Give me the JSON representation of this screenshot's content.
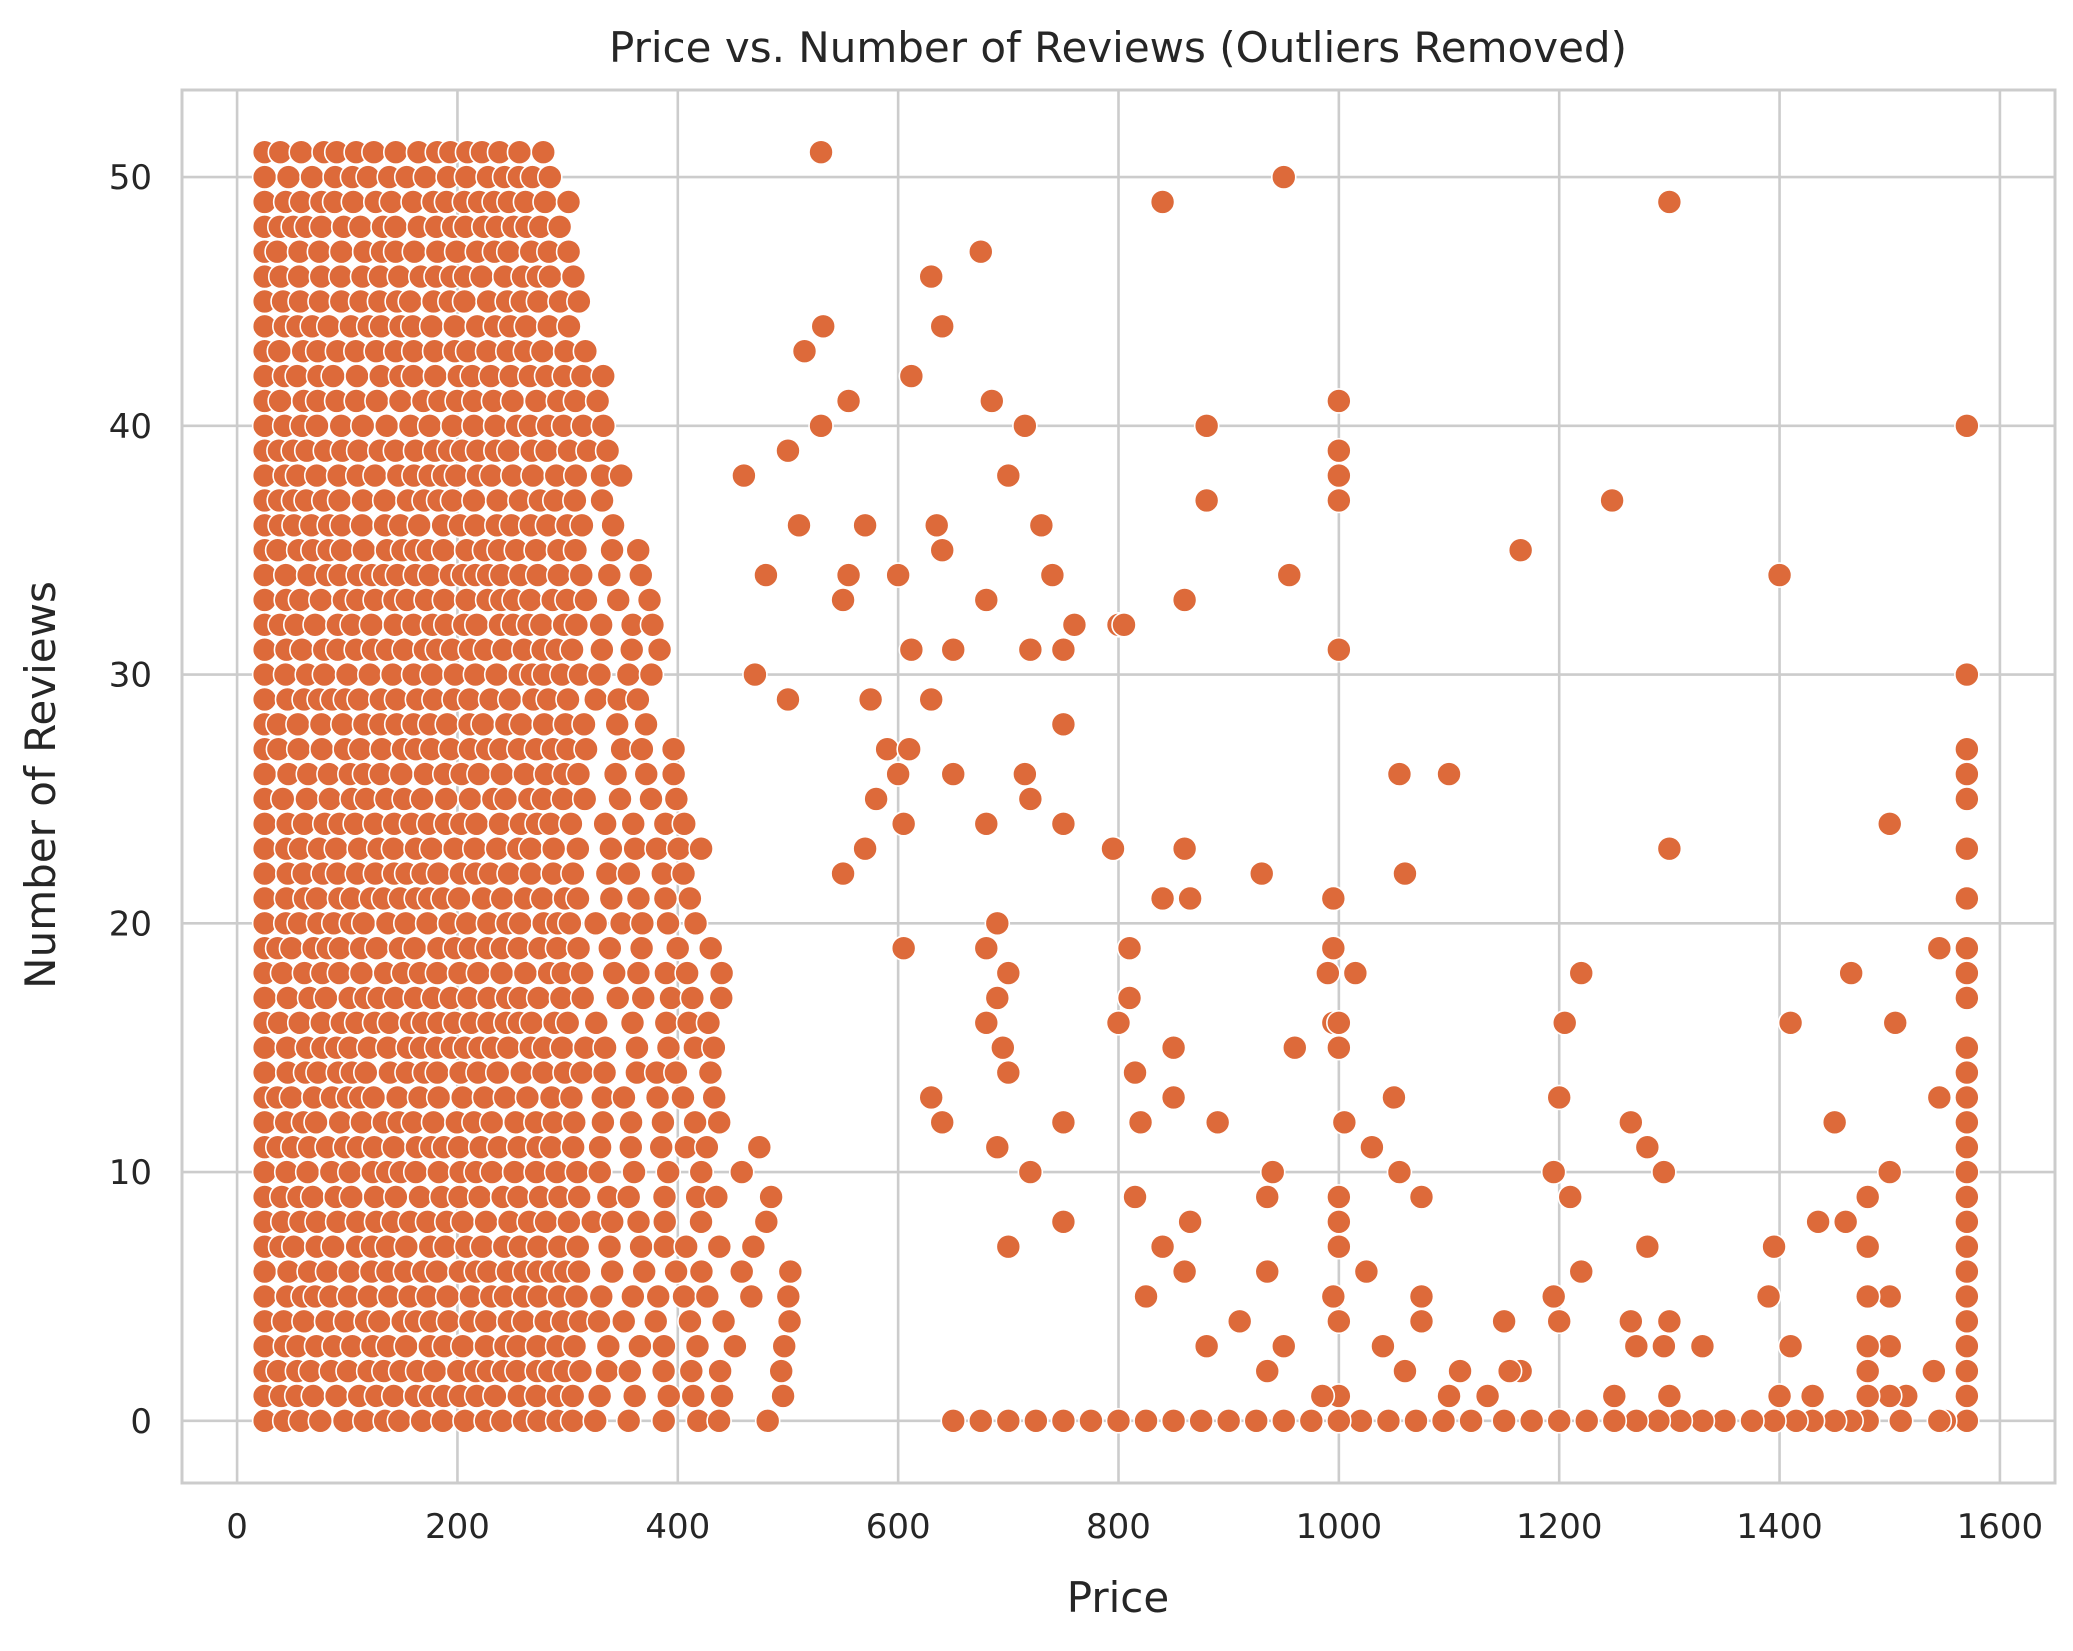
{
  "chart_data": {
    "type": "scatter",
    "title": "Price vs. Number of Reviews (Outliers Removed)",
    "xlabel": "Price",
    "ylabel": "Number of Reviews",
    "xlim": [
      -50,
      1650
    ],
    "ylim": [
      -2.5,
      53.5
    ],
    "xticks": [
      0,
      200,
      400,
      600,
      800,
      1000,
      1200,
      1400,
      1600
    ],
    "yticks": [
      0,
      10,
      20,
      30,
      40,
      50
    ],
    "grid": true,
    "color": "#dd6a3a",
    "dense_region": {
      "x_range": [
        25,
        530
      ],
      "y_range": [
        0,
        51
      ],
      "description_of_density": "near-continuous fill of integer review counts for prices up to ~530"
    },
    "points": [
      [
        530,
        51
      ],
      [
        950,
        50
      ],
      [
        1300,
        49
      ],
      [
        840,
        49
      ],
      [
        675,
        47
      ],
      [
        630,
        46
      ],
      [
        640,
        44
      ],
      [
        532,
        44
      ],
      [
        515,
        43
      ],
      [
        612,
        42
      ],
      [
        555,
        41
      ],
      [
        1000,
        41
      ],
      [
        685,
        41
      ],
      [
        1570,
        40
      ],
      [
        880,
        40
      ],
      [
        715,
        40
      ],
      [
        530,
        40
      ],
      [
        1000,
        39
      ],
      [
        500,
        39
      ],
      [
        1000,
        38
      ],
      [
        700,
        38
      ],
      [
        460,
        38
      ],
      [
        1000,
        37
      ],
      [
        880,
        37
      ],
      [
        1248,
        37
      ],
      [
        570,
        36
      ],
      [
        635,
        36
      ],
      [
        730,
        36
      ],
      [
        510,
        36
      ],
      [
        1165,
        35
      ],
      [
        640,
        35
      ],
      [
        480,
        34
      ],
      [
        955,
        34
      ],
      [
        1400,
        34
      ],
      [
        740,
        34
      ],
      [
        600,
        34
      ],
      [
        555,
        34
      ],
      [
        860,
        33
      ],
      [
        680,
        33
      ],
      [
        550,
        33
      ],
      [
        760,
        32
      ],
      [
        800,
        32
      ],
      [
        805,
        32
      ],
      [
        1000,
        31
      ],
      [
        720,
        31
      ],
      [
        750,
        31
      ],
      [
        612,
        31
      ],
      [
        650,
        31
      ],
      [
        1570,
        30
      ],
      [
        470,
        30
      ],
      [
        500,
        29
      ],
      [
        630,
        29
      ],
      [
        575,
        29
      ],
      [
        750,
        28
      ],
      [
        1570,
        27
      ],
      [
        590,
        27
      ],
      [
        610,
        27
      ],
      [
        1100,
        26
      ],
      [
        1055,
        26
      ],
      [
        1570,
        26
      ],
      [
        715,
        26
      ],
      [
        650,
        26
      ],
      [
        600,
        26
      ],
      [
        1570,
        25
      ],
      [
        720,
        25
      ],
      [
        580,
        25
      ],
      [
        750,
        24
      ],
      [
        1500,
        24
      ],
      [
        605,
        24
      ],
      [
        680,
        24
      ],
      [
        1300,
        23
      ],
      [
        1570,
        23
      ],
      [
        860,
        23
      ],
      [
        795,
        23
      ],
      [
        570,
        23
      ],
      [
        930,
        22
      ],
      [
        1060,
        22
      ],
      [
        550,
        22
      ],
      [
        1570,
        21
      ],
      [
        995,
        21
      ],
      [
        840,
        21
      ],
      [
        865,
        21
      ],
      [
        690,
        20
      ],
      [
        1545,
        19
      ],
      [
        1570,
        19
      ],
      [
        995,
        19
      ],
      [
        810,
        19
      ],
      [
        680,
        19
      ],
      [
        605,
        19
      ],
      [
        1220,
        18
      ],
      [
        1465,
        18
      ],
      [
        1015,
        18
      ],
      [
        990,
        18
      ],
      [
        1570,
        18
      ],
      [
        700,
        18
      ],
      [
        1570,
        17
      ],
      [
        810,
        17
      ],
      [
        690,
        17
      ],
      [
        1410,
        16
      ],
      [
        1505,
        16
      ],
      [
        1205,
        16
      ],
      [
        995,
        16
      ],
      [
        1000,
        16
      ],
      [
        800,
        16
      ],
      [
        680,
        16
      ],
      [
        1570,
        15
      ],
      [
        1000,
        15
      ],
      [
        960,
        15
      ],
      [
        850,
        15
      ],
      [
        695,
        15
      ],
      [
        1570,
        14
      ],
      [
        815,
        14
      ],
      [
        700,
        14
      ],
      [
        1200,
        13
      ],
      [
        1545,
        13
      ],
      [
        1050,
        13
      ],
      [
        850,
        13
      ],
      [
        630,
        13
      ],
      [
        1570,
        13
      ],
      [
        1450,
        12
      ],
      [
        1265,
        12
      ],
      [
        1005,
        12
      ],
      [
        890,
        12
      ],
      [
        820,
        12
      ],
      [
        750,
        12
      ],
      [
        640,
        12
      ],
      [
        1570,
        12
      ],
      [
        1280,
        11
      ],
      [
        1030,
        11
      ],
      [
        690,
        11
      ],
      [
        1570,
        11
      ],
      [
        1295,
        10
      ],
      [
        1195,
        10
      ],
      [
        1055,
        10
      ],
      [
        1500,
        10
      ],
      [
        940,
        10
      ],
      [
        720,
        10
      ],
      [
        1570,
        10
      ],
      [
        1210,
        9
      ],
      [
        1480,
        9
      ],
      [
        1075,
        9
      ],
      [
        1000,
        9
      ],
      [
        935,
        9
      ],
      [
        815,
        9
      ],
      [
        1570,
        9
      ],
      [
        1460,
        8
      ],
      [
        1435,
        8
      ],
      [
        1000,
        8
      ],
      [
        865,
        8
      ],
      [
        750,
        8
      ],
      [
        1570,
        8
      ],
      [
        1395,
        7
      ],
      [
        1480,
        7
      ],
      [
        1280,
        7
      ],
      [
        1000,
        7
      ],
      [
        840,
        7
      ],
      [
        700,
        7
      ],
      [
        1570,
        7
      ],
      [
        1220,
        6
      ],
      [
        1025,
        6
      ],
      [
        935,
        6
      ],
      [
        860,
        6
      ],
      [
        1570,
        6
      ],
      [
        1390,
        5
      ],
      [
        1500,
        5
      ],
      [
        1480,
        5
      ],
      [
        1195,
        5
      ],
      [
        1075,
        5
      ],
      [
        995,
        5
      ],
      [
        825,
        5
      ],
      [
        1570,
        5
      ],
      [
        1300,
        4
      ],
      [
        1265,
        4
      ],
      [
        1200,
        4
      ],
      [
        1150,
        4
      ],
      [
        1075,
        4
      ],
      [
        1000,
        4
      ],
      [
        910,
        4
      ],
      [
        1570,
        4
      ],
      [
        1330,
        3
      ],
      [
        1410,
        3
      ],
      [
        1500,
        3
      ],
      [
        1480,
        3
      ],
      [
        1295,
        3
      ],
      [
        1270,
        3
      ],
      [
        1040,
        3
      ],
      [
        950,
        3
      ],
      [
        880,
        3
      ],
      [
        1570,
        3
      ],
      [
        1540,
        2
      ],
      [
        1480,
        2
      ],
      [
        1165,
        2
      ],
      [
        1155,
        2
      ],
      [
        1110,
        2
      ],
      [
        1060,
        2
      ],
      [
        935,
        2
      ],
      [
        1570,
        2
      ],
      [
        1515,
        1
      ],
      [
        1500,
        1
      ],
      [
        1480,
        1
      ],
      [
        1430,
        1
      ],
      [
        1400,
        1
      ],
      [
        1300,
        1
      ],
      [
        1250,
        1
      ],
      [
        1135,
        1
      ],
      [
        1100,
        1
      ],
      [
        1000,
        1
      ],
      [
        985,
        1
      ],
      [
        1570,
        1
      ],
      [
        1570,
        0
      ],
      [
        1550,
        0
      ],
      [
        1545,
        0
      ],
      [
        1510,
        0
      ],
      [
        1480,
        0
      ],
      [
        1465,
        0
      ],
      [
        1450,
        0
      ],
      [
        1430,
        0
      ],
      [
        1415,
        0
      ],
      [
        1395,
        0
      ],
      [
        1375,
        0
      ],
      [
        1350,
        0
      ],
      [
        1330,
        0
      ],
      [
        1310,
        0
      ],
      [
        1290,
        0
      ],
      [
        1270,
        0
      ],
      [
        1250,
        0
      ],
      [
        1225,
        0
      ],
      [
        1200,
        0
      ],
      [
        1175,
        0
      ],
      [
        1150,
        0
      ],
      [
        1120,
        0
      ],
      [
        1095,
        0
      ],
      [
        1070,
        0
      ],
      [
        1045,
        0
      ],
      [
        1020,
        0
      ],
      [
        1000,
        0
      ],
      [
        975,
        0
      ],
      [
        950,
        0
      ],
      [
        925,
        0
      ],
      [
        900,
        0
      ],
      [
        875,
        0
      ],
      [
        850,
        0
      ],
      [
        825,
        0
      ],
      [
        800,
        0
      ],
      [
        775,
        0
      ],
      [
        750,
        0
      ],
      [
        725,
        0
      ],
      [
        700,
        0
      ],
      [
        675,
        0
      ],
      [
        650,
        0
      ]
    ]
  }
}
